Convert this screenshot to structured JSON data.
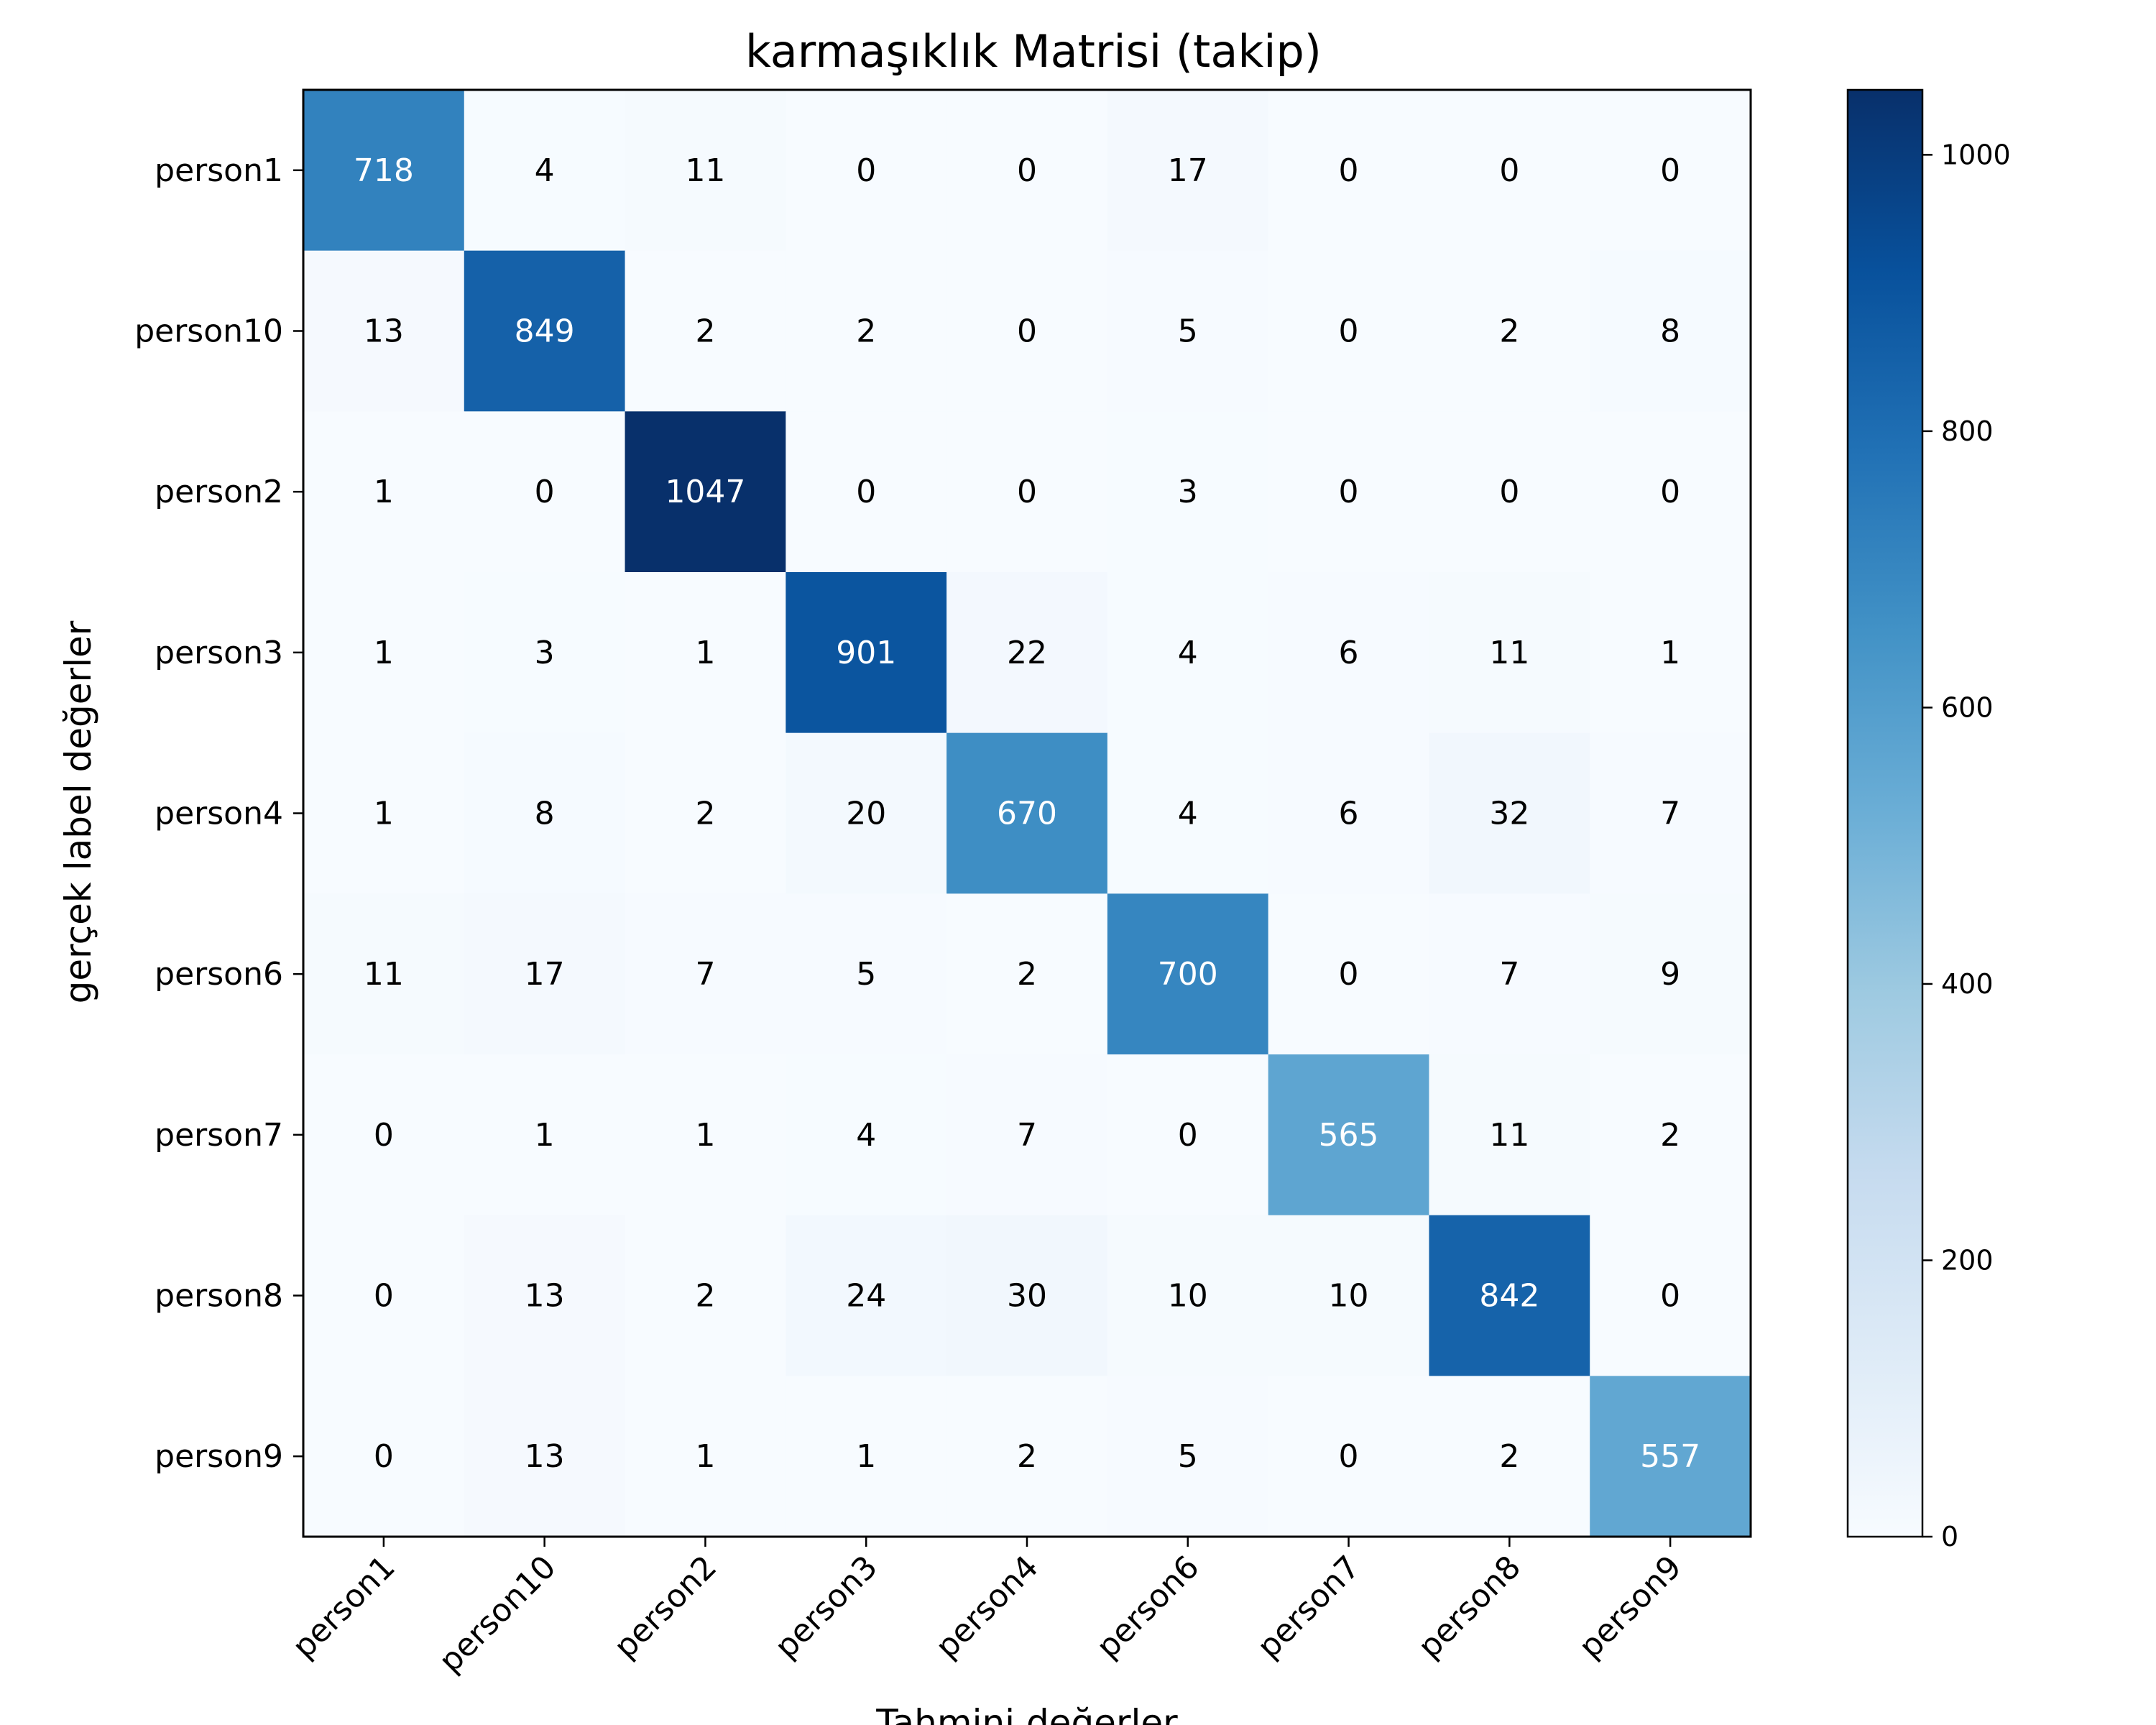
{
  "chart_data": {
    "type": "heatmap",
    "title": "karmaşıklık Matrisi (takip)",
    "xlabel": "Tahmini değerler",
    "ylabel": "gerçek label değerler",
    "x_categories": [
      "person1",
      "person10",
      "person2",
      "person3",
      "person4",
      "person6",
      "person7",
      "person8",
      "person9"
    ],
    "y_categories": [
      "person1",
      "person10",
      "person2",
      "person3",
      "person4",
      "person6",
      "person7",
      "person8",
      "person9"
    ],
    "values": [
      [
        718,
        4,
        11,
        0,
        0,
        17,
        0,
        0,
        0
      ],
      [
        13,
        849,
        2,
        2,
        0,
        5,
        0,
        2,
        8
      ],
      [
        1,
        0,
        1047,
        0,
        0,
        3,
        0,
        0,
        0
      ],
      [
        1,
        3,
        1,
        901,
        22,
        4,
        6,
        11,
        1
      ],
      [
        1,
        8,
        2,
        20,
        670,
        4,
        6,
        32,
        7
      ],
      [
        11,
        17,
        7,
        5,
        2,
        700,
        0,
        7,
        9
      ],
      [
        0,
        1,
        1,
        4,
        7,
        0,
        565,
        11,
        2
      ],
      [
        0,
        13,
        2,
        24,
        30,
        10,
        10,
        842,
        0
      ],
      [
        0,
        13,
        1,
        1,
        2,
        5,
        0,
        2,
        557
      ]
    ],
    "colormap": "Blues",
    "colormap_stops": [
      "#f7fbff",
      "#deebf7",
      "#c6dbef",
      "#9ecae1",
      "#6baed6",
      "#4292c6",
      "#2171b5",
      "#08519c",
      "#08306b"
    ],
    "vmin": 0,
    "vmax": 1047,
    "colorbar_ticks": [
      "0",
      "200",
      "400",
      "600",
      "800",
      "1000"
    ],
    "grid": false,
    "xtick_rotation": 45
  }
}
